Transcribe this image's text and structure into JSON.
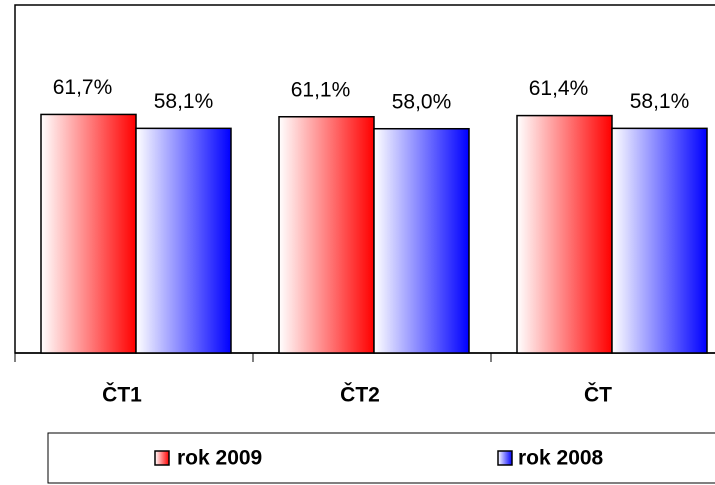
{
  "chart_data": {
    "type": "bar",
    "categories": [
      "ČT1",
      "ČT2",
      "ČT"
    ],
    "series": [
      {
        "name": "rok 2009",
        "color": "#ff0000",
        "values": [
          61.7,
          61.1,
          61.4
        ],
        "value_labels": [
          "61,7%",
          "61,1%",
          "61,4%"
        ]
      },
      {
        "name": "rok 2008",
        "color": "#0000ff",
        "values": [
          58.1,
          58.0,
          58.1
        ],
        "value_labels": [
          "58,1%",
          "58,0%",
          "58,1%"
        ]
      }
    ],
    "ylim": [
      0,
      90
    ],
    "legend": "bottom"
  }
}
